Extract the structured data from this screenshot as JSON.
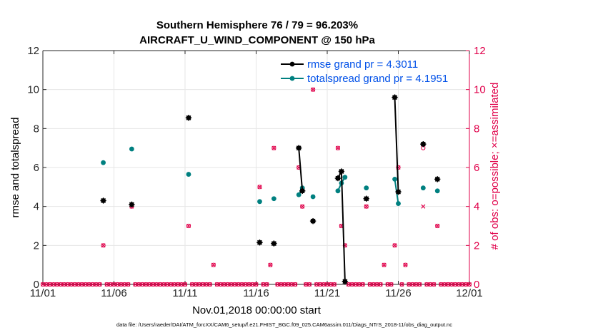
{
  "colors": {
    "rmse": "#000000",
    "spread": "#008080",
    "obs": "#e0004a",
    "legend_text": "#0050e8",
    "grid": "#e6e6e6"
  },
  "chart_data": {
    "type": "line",
    "title": "Southern Hemisphere 76 / 79 = 96.203%",
    "subtitle": "AIRCRAFT_U_WIND_COMPONENT @ 150 hPa",
    "xlabel": "Nov.01,2018 00:00:00 start",
    "ylabel": "rmse and totalspread",
    "y2label": "# of obs: o=possible; ×=assimilated",
    "footnote": "data file: /Users/raeder/DAI/ATM_forcXX/CAM6_setup/f.e21.FHIST_BGC.f09_025.CAM6assim.011/Diags_NTrS_2018-11/obs_diag_output.nc",
    "xlim": [
      1,
      31
    ],
    "ylim": [
      0,
      12
    ],
    "y2lim": [
      0,
      12
    ],
    "xticks": [
      1,
      6,
      11,
      16,
      21,
      26,
      31
    ],
    "xticklabels": [
      "11/01",
      "11/06",
      "11/11",
      "11/16",
      "11/21",
      "11/26",
      "12/01"
    ],
    "yticks": [
      0,
      2,
      4,
      6,
      8,
      10,
      12
    ],
    "yticklabels": [
      "0",
      "2",
      "4",
      "6",
      "8",
      "10",
      "12"
    ],
    "legend": {
      "position": "top-right",
      "rmse_label": "rmse grand pr = 4.3011",
      "spread_label": "totalspread grand pr = 4.1951"
    },
    "series": [
      {
        "name": "rmse",
        "label": "rmse grand pr = 4.3011",
        "x": [
          5.25,
          7.25,
          11.25,
          16.25,
          17.25,
          19.0,
          19.25,
          20.0,
          21.75,
          22.0,
          22.25,
          23.75,
          25.75,
          26.0,
          27.75,
          28.75
        ],
        "y": [
          4.3,
          4.1,
          8.55,
          2.15,
          2.1,
          7.0,
          4.8,
          3.25,
          5.45,
          5.8,
          0.15,
          4.4,
          9.6,
          4.75,
          7.2,
          5.4
        ]
      },
      {
        "name": "totalspread",
        "label": "totalspread grand pr = 4.1951",
        "x": [
          5.25,
          7.25,
          11.25,
          16.25,
          17.25,
          19.0,
          19.25,
          20.0,
          21.75,
          22.0,
          22.25,
          23.75,
          25.75,
          26.0,
          27.75,
          28.75
        ],
        "y": [
          6.25,
          6.95,
          5.65,
          4.25,
          4.4,
          4.6,
          4.95,
          4.5,
          4.8,
          5.2,
          5.5,
          4.95,
          5.4,
          4.15,
          4.95,
          4.8
        ]
      }
    ],
    "obs_counts": {
      "possible_nonzero": [
        {
          "x": 5.25,
          "n": 2
        },
        {
          "x": 7.25,
          "n": 4
        },
        {
          "x": 11.25,
          "n": 3
        },
        {
          "x": 13.0,
          "n": 1
        },
        {
          "x": 16.25,
          "n": 5
        },
        {
          "x": 17.0,
          "n": 1
        },
        {
          "x": 17.25,
          "n": 7
        },
        {
          "x": 19.0,
          "n": 6
        },
        {
          "x": 19.25,
          "n": 4
        },
        {
          "x": 20.0,
          "n": 10
        },
        {
          "x": 21.75,
          "n": 7
        },
        {
          "x": 22.0,
          "n": 3
        },
        {
          "x": 22.25,
          "n": 2
        },
        {
          "x": 23.75,
          "n": 4
        },
        {
          "x": 25.0,
          "n": 1
        },
        {
          "x": 25.75,
          "n": 2
        },
        {
          "x": 26.0,
          "n": 6
        },
        {
          "x": 26.5,
          "n": 1
        },
        {
          "x": 27.75,
          "n": 7
        },
        {
          "x": 28.75,
          "n": 3
        }
      ],
      "assimilated_nonzero": [
        {
          "x": 5.25,
          "n": 2
        },
        {
          "x": 7.25,
          "n": 4
        },
        {
          "x": 11.25,
          "n": 3
        },
        {
          "x": 13.0,
          "n": 1
        },
        {
          "x": 16.25,
          "n": 5
        },
        {
          "x": 17.0,
          "n": 1
        },
        {
          "x": 17.25,
          "n": 7
        },
        {
          "x": 19.0,
          "n": 6
        },
        {
          "x": 19.25,
          "n": 4
        },
        {
          "x": 20.0,
          "n": 10
        },
        {
          "x": 21.75,
          "n": 7
        },
        {
          "x": 22.0,
          "n": 3
        },
        {
          "x": 22.25,
          "n": 2
        },
        {
          "x": 23.75,
          "n": 4
        },
        {
          "x": 25.0,
          "n": 1
        },
        {
          "x": 25.75,
          "n": 2
        },
        {
          "x": 26.0,
          "n": 6
        },
        {
          "x": 26.5,
          "n": 1
        },
        {
          "x": 27.75,
          "n": 4
        },
        {
          "x": 28.75,
          "n": 3
        }
      ],
      "zero_step_days": 0.25
    }
  }
}
